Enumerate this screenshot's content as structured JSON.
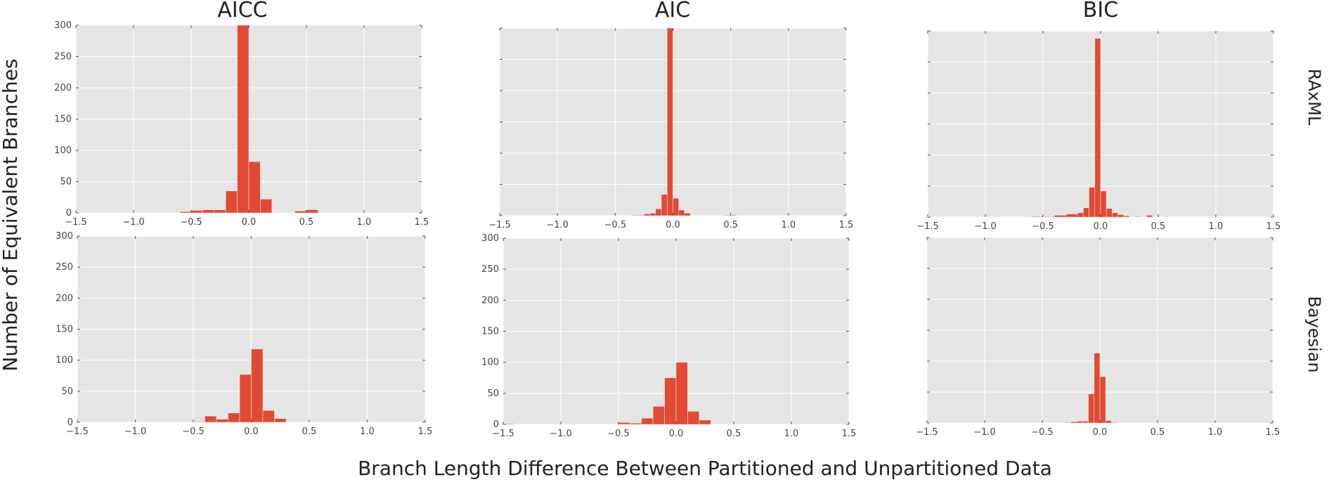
{
  "figure": {
    "ylabel": "Number of Equivalent Branches",
    "xlabel": "Branch Length Difference Between Partitioned and Unpartitioned Data",
    "columns": [
      "AICC",
      "AIC",
      "BIC"
    ],
    "rows": [
      "RAxML",
      "Bayesian"
    ]
  },
  "colors": {
    "bar": "#E24A33",
    "panel_bg": "#E5E5E5",
    "grid": "#ffffff"
  },
  "chart_data": [
    {
      "type": "bar",
      "row": "RAxML",
      "column": "AICC",
      "xlim": [
        -1.5,
        1.5
      ],
      "ylim": [
        0,
        300
      ],
      "xticks": [
        "−1.5",
        "−1.0",
        "−0.5",
        "0.0",
        "0.5",
        "1.0",
        "1.5"
      ],
      "yticks": [
        "0",
        "50",
        "100",
        "150",
        "200",
        "250",
        "300"
      ],
      "grid": true,
      "bins": [
        [
          -0.6,
          -0.5,
          2
        ],
        [
          -0.5,
          -0.4,
          4
        ],
        [
          -0.4,
          -0.3,
          5
        ],
        [
          -0.3,
          -0.2,
          5
        ],
        [
          -0.2,
          -0.1,
          35
        ],
        [
          -0.1,
          0.0,
          300
        ],
        [
          0.0,
          0.1,
          82
        ],
        [
          0.1,
          0.2,
          22
        ],
        [
          0.4,
          0.5,
          3
        ],
        [
          0.5,
          0.6,
          5
        ]
      ]
    },
    {
      "type": "bar",
      "row": "RAxML",
      "column": "AIC",
      "xlim": [
        -1.5,
        1.5
      ],
      "ylim": [
        0,
        300
      ],
      "xticks": [
        "−1.5",
        "−1.0",
        "−0.5",
        "0.0",
        "0.5",
        "1.0",
        "1.5"
      ],
      "yticks": [],
      "grid": true,
      "bins": [
        [
          -0.35,
          -0.3,
          1
        ],
        [
          -0.3,
          -0.25,
          1
        ],
        [
          -0.25,
          -0.2,
          3
        ],
        [
          -0.2,
          -0.15,
          4
        ],
        [
          -0.15,
          -0.1,
          11
        ],
        [
          -0.1,
          -0.05,
          34
        ],
        [
          -0.05,
          0.0,
          300
        ],
        [
          0.0,
          0.05,
          28
        ],
        [
          0.05,
          0.1,
          9
        ],
        [
          0.1,
          0.15,
          4
        ],
        [
          0.45,
          0.5,
          1
        ],
        [
          0.5,
          0.55,
          1
        ]
      ]
    },
    {
      "type": "bar",
      "row": "RAxML",
      "column": "BIC",
      "xlim": [
        -1.5,
        1.5
      ],
      "ylim": [
        0,
        300
      ],
      "xticks": [
        "−1.5",
        "−1.0",
        "−0.5",
        "0.0",
        "0.5",
        "1.0",
        "1.5"
      ],
      "yticks": [],
      "grid": true,
      "bins": [
        [
          -0.6,
          -0.5,
          1
        ],
        [
          -0.5,
          -0.4,
          1
        ],
        [
          -0.4,
          -0.3,
          3
        ],
        [
          -0.3,
          -0.2,
          5
        ],
        [
          -0.2,
          -0.15,
          7
        ],
        [
          -0.15,
          -0.1,
          15
        ],
        [
          -0.1,
          -0.05,
          48
        ],
        [
          -0.05,
          0.0,
          288
        ],
        [
          0.0,
          0.05,
          42
        ],
        [
          0.05,
          0.1,
          14
        ],
        [
          0.1,
          0.15,
          7
        ],
        [
          0.15,
          0.2,
          4
        ],
        [
          0.2,
          0.25,
          2
        ],
        [
          0.3,
          0.35,
          1
        ],
        [
          0.4,
          0.45,
          3
        ]
      ]
    },
    {
      "type": "bar",
      "row": "Bayesian",
      "column": "AICC",
      "xlim": [
        -1.5,
        1.5
      ],
      "ylim": [
        0,
        300
      ],
      "xticks": [
        "−1.5",
        "−1.0",
        "−0.5",
        "0.0",
        "0.5",
        "1.0",
        "1.5"
      ],
      "yticks": [
        "0",
        "50",
        "100",
        "150",
        "200",
        "250",
        "300"
      ],
      "grid": true,
      "bins": [
        [
          -0.5,
          -0.4,
          1
        ],
        [
          -0.4,
          -0.3,
          10
        ],
        [
          -0.3,
          -0.2,
          5
        ],
        [
          -0.2,
          -0.1,
          15
        ],
        [
          -0.1,
          0.0,
          77
        ],
        [
          0.0,
          0.1,
          118
        ],
        [
          0.1,
          0.2,
          19
        ],
        [
          0.2,
          0.3,
          6
        ]
      ]
    },
    {
      "type": "bar",
      "row": "Bayesian",
      "column": "AIC",
      "xlim": [
        -1.5,
        1.5
      ],
      "ylim": [
        0,
        300
      ],
      "xticks": [
        "−1.5",
        "−1.0",
        "−0.5",
        "0.0",
        "0.5",
        "1.0",
        "1.5"
      ],
      "yticks": [
        "0",
        "50",
        "100",
        "150",
        "200",
        "250",
        "300"
      ],
      "grid": true,
      "bins": [
        [
          -1.5,
          -1.4,
          1
        ],
        [
          -0.5,
          -0.4,
          3
        ],
        [
          -0.4,
          -0.3,
          2
        ],
        [
          -0.3,
          -0.2,
          10
        ],
        [
          -0.2,
          -0.1,
          29
        ],
        [
          -0.1,
          0.0,
          75
        ],
        [
          0.0,
          0.1,
          100
        ],
        [
          0.1,
          0.2,
          21
        ],
        [
          0.2,
          0.3,
          7
        ]
      ]
    },
    {
      "type": "bar",
      "row": "Bayesian",
      "column": "BIC",
      "xlim": [
        -1.5,
        1.5
      ],
      "ylim": [
        0,
        300
      ],
      "xticks": [
        "−1.5",
        "−1.0",
        "−0.5",
        "0.0",
        "0.5",
        "1.0",
        "1.5"
      ],
      "yticks": [],
      "grid": true,
      "bins": [
        [
          -0.3,
          -0.25,
          1
        ],
        [
          -0.25,
          -0.2,
          2
        ],
        [
          -0.2,
          -0.15,
          3
        ],
        [
          -0.15,
          -0.1,
          3
        ],
        [
          -0.1,
          -0.05,
          47
        ],
        [
          -0.05,
          0.0,
          113
        ],
        [
          0.0,
          0.05,
          75
        ],
        [
          0.05,
          0.1,
          4
        ],
        [
          0.1,
          0.15,
          1
        ]
      ]
    }
  ]
}
